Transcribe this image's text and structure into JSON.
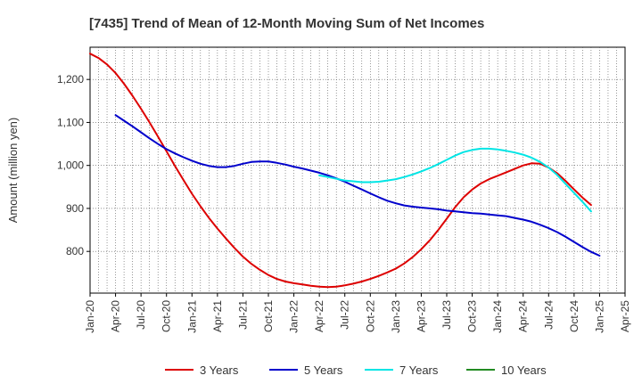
{
  "chart_data": {
    "type": "line",
    "title": "[7435]  Trend of Mean of 12-Month Moving Sum of Net Incomes",
    "xlabel": "",
    "ylabel": "Amount (million yen)",
    "x_ticks": [
      "Jan-20",
      "Apr-20",
      "Jul-20",
      "Oct-20",
      "Jan-21",
      "Apr-21",
      "Jul-21",
      "Oct-21",
      "Jan-22",
      "Apr-22",
      "Jul-22",
      "Oct-22",
      "Jan-23",
      "Apr-23",
      "Jul-23",
      "Oct-23",
      "Jan-24",
      "Apr-24",
      "Jul-24",
      "Oct-24",
      "Jan-25",
      "Apr-25"
    ],
    "y_ticks": [
      800,
      900,
      1000,
      1100,
      1200
    ],
    "y_tick_labels": [
      "800",
      "900",
      "1,000",
      "1,100",
      "1,200"
    ],
    "ylim": [
      703,
      1275
    ],
    "xlim": [
      "2020-01",
      "2025-04"
    ],
    "grid": true,
    "legend_position": "bottom",
    "series": [
      {
        "name": "3 Years",
        "color": "#dd0000",
        "points": [
          [
            "2020-01",
            1260
          ],
          [
            "2020-02",
            1250
          ],
          [
            "2020-03",
            1235
          ],
          [
            "2020-04",
            1215
          ],
          [
            "2020-05",
            1190
          ],
          [
            "2020-06",
            1162
          ],
          [
            "2020-07",
            1132
          ],
          [
            "2020-08",
            1100
          ],
          [
            "2020-09",
            1067
          ],
          [
            "2020-10",
            1033
          ],
          [
            "2020-11",
            999
          ],
          [
            "2020-12",
            966
          ],
          [
            "2021-01",
            934
          ],
          [
            "2021-02",
            905
          ],
          [
            "2021-03",
            878
          ],
          [
            "2021-04",
            853
          ],
          [
            "2021-05",
            830
          ],
          [
            "2021-06",
            808
          ],
          [
            "2021-07",
            788
          ],
          [
            "2021-08",
            771
          ],
          [
            "2021-09",
            757
          ],
          [
            "2021-10",
            745
          ],
          [
            "2021-11",
            736
          ],
          [
            "2021-12",
            730
          ],
          [
            "2022-01",
            726
          ],
          [
            "2022-02",
            723
          ],
          [
            "2022-03",
            720
          ],
          [
            "2022-04",
            718
          ],
          [
            "2022-05",
            717
          ],
          [
            "2022-06",
            718
          ],
          [
            "2022-07",
            721
          ],
          [
            "2022-08",
            725
          ],
          [
            "2022-09",
            730
          ],
          [
            "2022-10",
            736
          ],
          [
            "2022-11",
            743
          ],
          [
            "2022-12",
            751
          ],
          [
            "2023-01",
            760
          ],
          [
            "2023-02",
            772
          ],
          [
            "2023-03",
            787
          ],
          [
            "2023-04",
            805
          ],
          [
            "2023-05",
            826
          ],
          [
            "2023-06",
            850
          ],
          [
            "2023-07",
            876
          ],
          [
            "2023-08",
            903
          ],
          [
            "2023-09",
            926
          ],
          [
            "2023-10",
            944
          ],
          [
            "2023-11",
            958
          ],
          [
            "2023-12",
            968
          ],
          [
            "2024-01",
            976
          ],
          [
            "2024-02",
            984
          ],
          [
            "2024-03",
            992
          ],
          [
            "2024-04",
            1000
          ],
          [
            "2024-05",
            1005
          ],
          [
            "2024-06",
            1004
          ],
          [
            "2024-07",
            995
          ],
          [
            "2024-08",
            982
          ],
          [
            "2024-09",
            964
          ],
          [
            "2024-10",
            944
          ],
          [
            "2024-11",
            925
          ],
          [
            "2024-12",
            908
          ]
        ]
      },
      {
        "name": "5 Years",
        "color": "#0000cc",
        "points": [
          [
            "2020-04",
            1117
          ],
          [
            "2020-05",
            1104
          ],
          [
            "2020-06",
            1091
          ],
          [
            "2020-07",
            1077
          ],
          [
            "2020-08",
            1063
          ],
          [
            "2020-09",
            1050
          ],
          [
            "2020-10",
            1038
          ],
          [
            "2020-11",
            1028
          ],
          [
            "2020-12",
            1019
          ],
          [
            "2021-01",
            1011
          ],
          [
            "2021-02",
            1004
          ],
          [
            "2021-03",
            999
          ],
          [
            "2021-04",
            996
          ],
          [
            "2021-05",
            996
          ],
          [
            "2021-06",
            999
          ],
          [
            "2021-07",
            1004
          ],
          [
            "2021-08",
            1008
          ],
          [
            "2021-09",
            1009
          ],
          [
            "2021-10",
            1009
          ],
          [
            "2021-11",
            1006
          ],
          [
            "2021-12",
            1002
          ],
          [
            "2022-01",
            997
          ],
          [
            "2022-02",
            993
          ],
          [
            "2022-03",
            988
          ],
          [
            "2022-04",
            983
          ],
          [
            "2022-05",
            977
          ],
          [
            "2022-06",
            970
          ],
          [
            "2022-07",
            962
          ],
          [
            "2022-08",
            953
          ],
          [
            "2022-09",
            944
          ],
          [
            "2022-10",
            935
          ],
          [
            "2022-11",
            926
          ],
          [
            "2022-12",
            918
          ],
          [
            "2023-01",
            912
          ],
          [
            "2023-02",
            907
          ],
          [
            "2023-03",
            904
          ],
          [
            "2023-04",
            902
          ],
          [
            "2023-05",
            900
          ],
          [
            "2023-06",
            898
          ],
          [
            "2023-07",
            895
          ],
          [
            "2023-08",
            893
          ],
          [
            "2023-09",
            891
          ],
          [
            "2023-10",
            889
          ],
          [
            "2023-11",
            888
          ],
          [
            "2023-12",
            886
          ],
          [
            "2024-01",
            884
          ],
          [
            "2024-02",
            882
          ],
          [
            "2024-03",
            878
          ],
          [
            "2024-04",
            874
          ],
          [
            "2024-05",
            869
          ],
          [
            "2024-06",
            862
          ],
          [
            "2024-07",
            854
          ],
          [
            "2024-08",
            845
          ],
          [
            "2024-09",
            834
          ],
          [
            "2024-10",
            822
          ],
          [
            "2024-11",
            810
          ],
          [
            "2024-12",
            799
          ],
          [
            "2025-01",
            790
          ]
        ]
      },
      {
        "name": "7 Years",
        "color": "#00e5e5",
        "points": [
          [
            "2022-04",
            977
          ],
          [
            "2022-05",
            973
          ],
          [
            "2022-06",
            969
          ],
          [
            "2022-07",
            965
          ],
          [
            "2022-08",
            963
          ],
          [
            "2022-09",
            961
          ],
          [
            "2022-10",
            961
          ],
          [
            "2022-11",
            962
          ],
          [
            "2022-12",
            965
          ],
          [
            "2023-01",
            968
          ],
          [
            "2023-02",
            973
          ],
          [
            "2023-03",
            979
          ],
          [
            "2023-04",
            986
          ],
          [
            "2023-05",
            994
          ],
          [
            "2023-06",
            1003
          ],
          [
            "2023-07",
            1013
          ],
          [
            "2023-08",
            1023
          ],
          [
            "2023-09",
            1031
          ],
          [
            "2023-10",
            1036
          ],
          [
            "2023-11",
            1039
          ],
          [
            "2023-12",
            1039
          ],
          [
            "2024-01",
            1037
          ],
          [
            "2024-02",
            1034
          ],
          [
            "2024-03",
            1030
          ],
          [
            "2024-04",
            1025
          ],
          [
            "2024-05",
            1018
          ],
          [
            "2024-06",
            1008
          ],
          [
            "2024-07",
            995
          ],
          [
            "2024-08",
            978
          ],
          [
            "2024-09",
            957
          ],
          [
            "2024-10",
            936
          ],
          [
            "2024-11",
            915
          ],
          [
            "2024-12",
            893
          ]
        ]
      },
      {
        "name": "10 Years",
        "color": "#228b22",
        "points": []
      }
    ]
  }
}
